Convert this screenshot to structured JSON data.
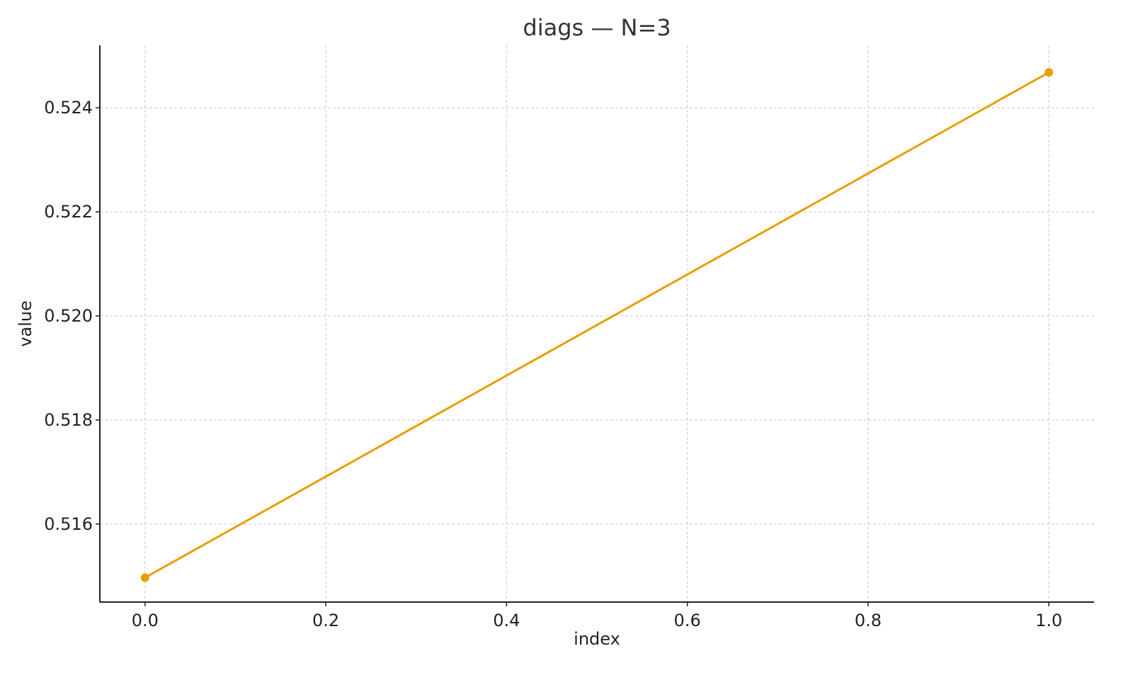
{
  "chart_data": {
    "type": "line",
    "title": "diags — N=3",
    "xlabel": "index",
    "ylabel": "value",
    "xlim": [
      -0.05,
      1.05
    ],
    "ylim": [
      0.5145,
      0.5252
    ],
    "xticks": [
      0.0,
      0.2,
      0.4,
      0.6,
      0.8,
      1.0
    ],
    "xtick_labels": [
      "0.0",
      "0.2",
      "0.4",
      "0.6",
      "0.8",
      "1.0"
    ],
    "yticks": [
      0.516,
      0.518,
      0.52,
      0.522,
      0.524
    ],
    "ytick_labels": [
      "0.516",
      "0.518",
      "0.520",
      "0.522",
      "0.524"
    ],
    "grid": true,
    "series": [
      {
        "color": "#E69F00",
        "x": [
          0.0,
          1.0
        ],
        "y": [
          0.51497,
          0.52468
        ],
        "marker": "circle"
      }
    ]
  }
}
